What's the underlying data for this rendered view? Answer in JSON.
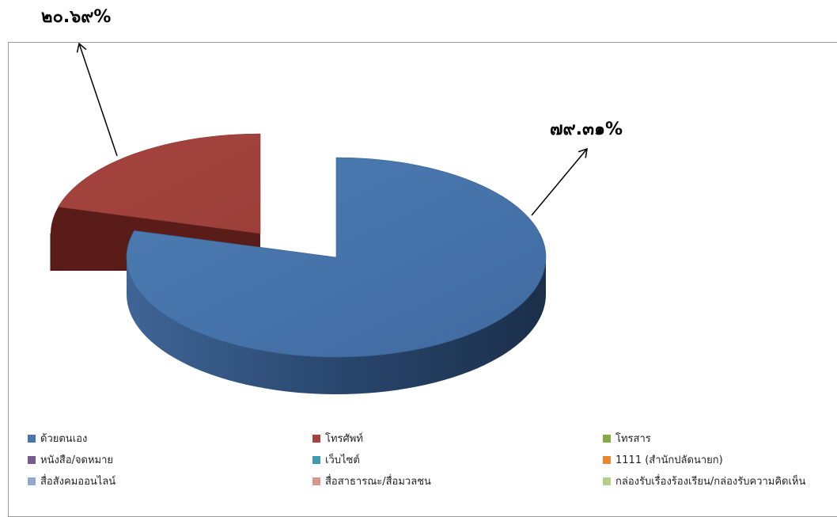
{
  "chart_data": {
    "type": "pie",
    "three_d": true,
    "exploded_slice": "โทรศัพท์",
    "slices": [
      {
        "label": "ด้วยตนเอง",
        "value": 79.31,
        "value_label": "๗๙.๓๑%",
        "color": "#4472a8"
      },
      {
        "label": "โทรศัพท์",
        "value": 20.69,
        "value_label": "๒๐.๖๙%",
        "color": "#a8443f"
      }
    ],
    "legend": {
      "placement": "bottom",
      "entries": [
        {
          "label": "ด้วยตนเอง",
          "color": "#4a76aa"
        },
        {
          "label": "โทรศัพท์",
          "color": "#a7443f"
        },
        {
          "label": "โทรสาร",
          "color": "#88aa44"
        },
        {
          "label": "หนังสือ/จดหมาย",
          "color": "#765893"
        },
        {
          "label": "เว็บไซต์",
          "color": "#3f9bb2"
        },
        {
          "label": "1111 (สำนักปลัดนายก)",
          "color": "#e58a33"
        },
        {
          "label": "สื่อสังคมออนไลน์",
          "color": "#93aad2"
        },
        {
          "label": "สื่อสาธารณะ/สื่อมวลชน",
          "color": "#d9958f"
        },
        {
          "label": "กล่องรับเรื่องร้องเรียน/กล่องรับความคิดเห็น",
          "color": "#b5cf8a"
        }
      ]
    }
  }
}
